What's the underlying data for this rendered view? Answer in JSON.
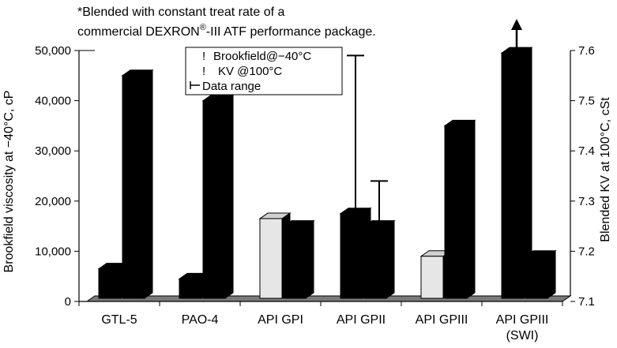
{
  "note": {
    "line1": "*Blended with constant treat rate of a",
    "line2_pre": "commercial DEXRON",
    "line2_sup": "®",
    "line2_post": "-III ATF performance package."
  },
  "legend": {
    "brookfield": "Brookfield@−40°C",
    "kv": "KV @100°C",
    "range": "Data range"
  },
  "chart_data": {
    "type": "bar",
    "categories": [
      "GTL-5",
      "PAO-4",
      "API GPI",
      "API GPII",
      "API GPIII",
      "API GPIII\n(SWI)"
    ],
    "category_lines": [
      [
        "GTL-5"
      ],
      [
        "PAO-4"
      ],
      [
        "API GPI"
      ],
      [
        "API GPII"
      ],
      [
        "API GPIII"
      ],
      [
        "API GPIII",
        "(SWI)"
      ]
    ],
    "series": [
      {
        "name": "Brookfield@−40°C",
        "axis": "left",
        "values": [
          6500,
          4500,
          16500,
          17500,
          9000,
          49500
        ],
        "face_colors": [
          "#000000",
          "#000000",
          "#e6e6e6",
          "#000000",
          "#e6e6e6",
          "#000000"
        ]
      },
      {
        "name": "KV @100°C",
        "axis": "right",
        "values": [
          7.55,
          7.5,
          7.25,
          7.25,
          7.45,
          7.19
        ],
        "face_colors": [
          "#000000",
          "#000000",
          "#000000",
          "#000000",
          "#000000",
          "#000000"
        ]
      }
    ],
    "error_bars": [
      {
        "category": "API GPII",
        "series": "Brookfield@−40°C",
        "high": 49000
      },
      {
        "category": "API GPII",
        "series": "KV @100°C",
        "high": 7.34
      },
      {
        "category": "API GPIII\n(SWI)",
        "series": "Brookfield@−40°C",
        "arrow": true
      }
    ],
    "y_left": {
      "label": "Brookfield viscosity at −40°C, cP",
      "min": 0,
      "max": 50000,
      "step": 10000,
      "ticks": [
        "0",
        "10,000",
        "20,000",
        "30,000",
        "40,000",
        "50,000"
      ]
    },
    "y_right": {
      "label": "Blended KV at 100°C, cSt",
      "min": 7.1,
      "max": 7.6,
      "step": 0.1,
      "ticks": [
        "7.1",
        "7.2",
        "7.3",
        "7.4",
        "7.5",
        "7.6"
      ]
    },
    "grid": false,
    "legend_position": "top-center"
  }
}
